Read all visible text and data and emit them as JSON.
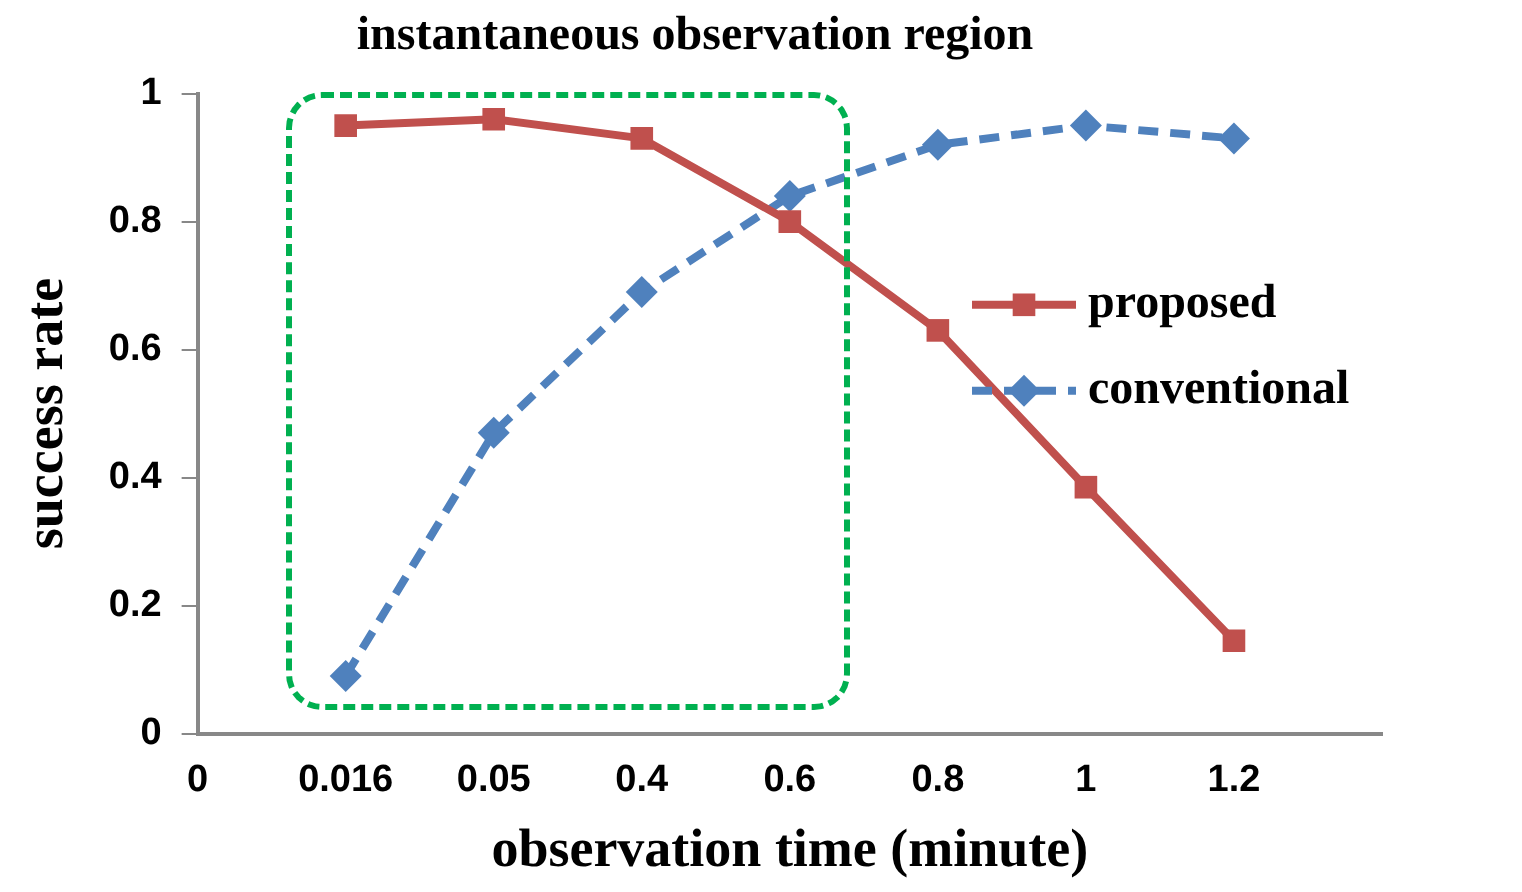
{
  "chart_data": {
    "type": "line",
    "xlabel": "observation time (minute)",
    "ylabel": "success rate",
    "categories": [
      "0",
      "0.016",
      "0.05",
      "0.4",
      "0.6",
      "0.8",
      "1",
      "1.2",
      null
    ],
    "series": [
      {
        "name": "proposed",
        "color": "#c0504d",
        "marker": "square",
        "line_style": "solid",
        "values": [
          null,
          0.95,
          0.96,
          0.93,
          0.8,
          0.63,
          0.385,
          0.145,
          null
        ]
      },
      {
        "name": "conventional",
        "color": "#4f81bd",
        "marker": "diamond",
        "line_style": "dashed",
        "values": [
          null,
          0.09,
          0.47,
          0.69,
          0.84,
          0.92,
          0.95,
          0.93,
          null
        ]
      }
    ],
    "ylim": [
      0,
      1
    ],
    "yticks": [
      0,
      0.2,
      0.4,
      0.6,
      0.8,
      1
    ],
    "title": "instantaneous observation region",
    "grid": false,
    "legend": "right"
  }
}
